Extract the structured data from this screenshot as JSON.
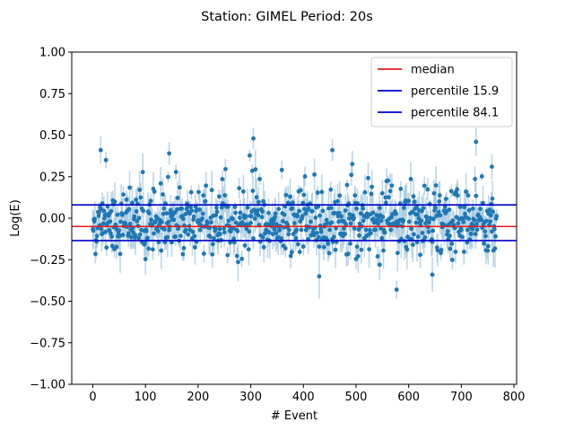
{
  "chart_data": {
    "type": "scatter",
    "title": "Station: GIMEL Period: 20s",
    "xlabel": "# Event",
    "ylabel": "Log(E)",
    "xlim": [
      -40,
      805
    ],
    "ylim": [
      -1.0,
      1.0
    ],
    "xticks": [
      0,
      100,
      200,
      300,
      400,
      500,
      600,
      700,
      800
    ],
    "yticks": [
      -1.0,
      -0.75,
      -0.5,
      -0.25,
      0.0,
      0.25,
      0.5,
      0.75,
      1.0
    ],
    "xtick_labels": [
      "0",
      "100",
      "200",
      "300",
      "400",
      "500",
      "600",
      "700",
      "800"
    ],
    "ytick_labels": [
      "−1.00",
      "−0.75",
      "−0.50",
      "−0.25",
      "0.00",
      "0.25",
      "0.50",
      "0.75",
      "1.00"
    ],
    "grid": false,
    "legend_position": "top-right",
    "points_note_count": 768,
    "reference_lines": [
      {
        "name": "median",
        "y": -0.05,
        "color": "#e31a1c"
      },
      {
        "name": "percentile 15.9",
        "y": -0.135,
        "color": "#0000cc"
      },
      {
        "name": "percentile 84.1",
        "y": 0.08,
        "color": "#0000cc"
      }
    ],
    "series": [
      {
        "marker_color": "#1f77b4",
        "errorbar_color": "#a6c8e0",
        "highlight_points": [
          {
            "x": 15,
            "y": 0.41
          },
          {
            "x": 305,
            "y": 0.48
          },
          {
            "x": 728,
            "y": 0.46
          },
          {
            "x": 577,
            "y": -0.43
          },
          {
            "x": 430,
            "y": -0.35
          },
          {
            "x": 645,
            "y": -0.34
          },
          {
            "x": 25,
            "y": 0.35
          },
          {
            "x": 145,
            "y": 0.39
          },
          {
            "x": 455,
            "y": 0.41
          },
          {
            "x": 758,
            "y": 0.31
          },
          {
            "x": 545,
            "y": -0.28
          }
        ]
      }
    ]
  }
}
